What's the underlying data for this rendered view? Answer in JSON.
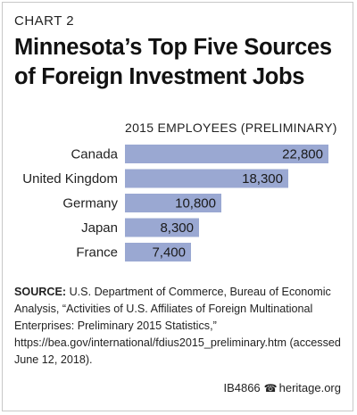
{
  "header": {
    "chart_label": "CHART 2",
    "title": "Minnesota’s Top Five Sources of Foreign Investment Jobs"
  },
  "chart_data": {
    "type": "bar",
    "orientation": "horizontal",
    "title": "Minnesota’s Top Five Sources of Foreign Investment Jobs",
    "series_header": "2015 EMPLOYEES (PRELIMINARY)",
    "categories": [
      "Canada",
      "United Kingdom",
      "Germany",
      "Japan",
      "France"
    ],
    "values": [
      22800,
      18300,
      10800,
      8300,
      7400
    ],
    "value_labels": [
      "22,800",
      "18,300",
      "10,800",
      "8,300",
      "7,400"
    ],
    "xlim": [
      0,
      23000
    ],
    "bar_color": "#9aa8d2",
    "grid": false,
    "legend": "none"
  },
  "source": {
    "lead": "SOURCE:",
    "text": " U.S. Department of Commerce, Bureau of Economic Analysis, “Activities of U.S. Affiliates of Foreign Multinational Enterprises: Preliminary 2015 Statistics,” https://bea.gov/international/fdius2015_preliminary.htm (accessed June 12, 2018)."
  },
  "footer": {
    "code": "IB4866",
    "bell_icon": "☎",
    "site": "heritage.org"
  }
}
